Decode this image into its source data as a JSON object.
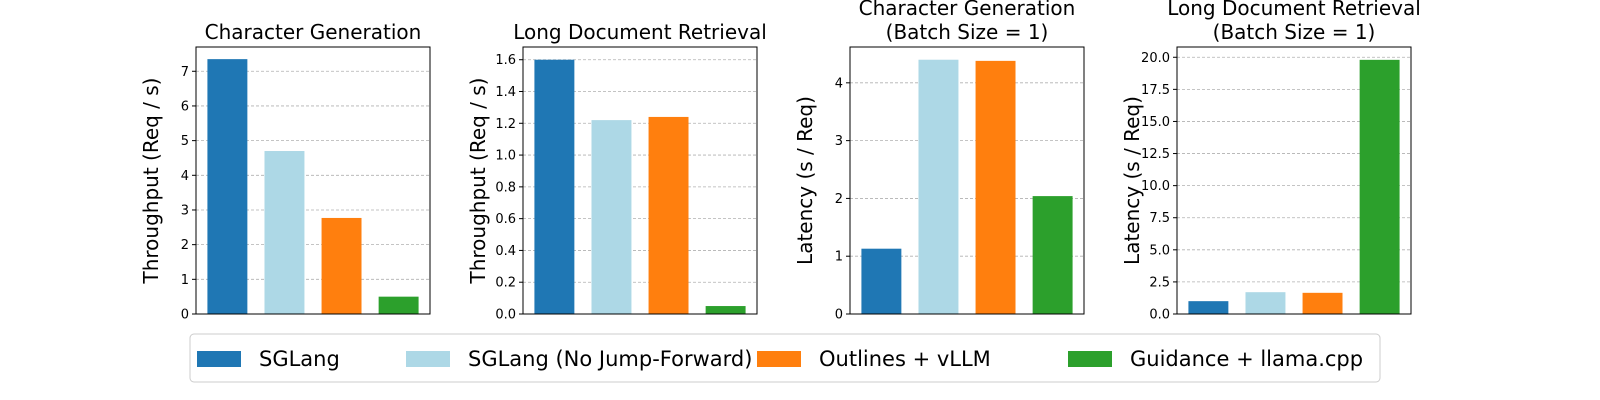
{
  "chart_data": [
    {
      "type": "bar",
      "title": [
        "Character Generation"
      ],
      "ylabel": "Throughput (Req / s)",
      "ylim": [
        0,
        7.7
      ],
      "yticks": [
        0,
        1,
        2,
        3,
        4,
        5,
        6,
        7
      ],
      "ytick_labels": [
        "0",
        "1",
        "2",
        "3",
        "4",
        "5",
        "6",
        "7"
      ],
      "grid": true,
      "series": [
        {
          "name": "SGLang",
          "values": [
            7.35
          ]
        },
        {
          "name": "SGLang (No Jump-Forward)",
          "values": [
            4.7
          ]
        },
        {
          "name": "Outlines + vLLM",
          "values": [
            2.77
          ]
        },
        {
          "name": "Guidance + llama.cpp",
          "values": [
            0.5
          ]
        }
      ]
    },
    {
      "type": "bar",
      "title": [
        "Long Document Retrieval"
      ],
      "ylabel": "Throughput (Req / s)",
      "ylim": [
        0,
        1.68
      ],
      "yticks": [
        0,
        0.2,
        0.4,
        0.6,
        0.8,
        1.0,
        1.2,
        1.4,
        1.6
      ],
      "ytick_labels": [
        "0.0",
        "0.2",
        "0.4",
        "0.6",
        "0.8",
        "1.0",
        "1.2",
        "1.4",
        "1.6"
      ],
      "grid": true,
      "series": [
        {
          "name": "SGLang",
          "values": [
            1.6
          ]
        },
        {
          "name": "SGLang (No Jump-Forward)",
          "values": [
            1.22
          ]
        },
        {
          "name": "Outlines + vLLM",
          "values": [
            1.24
          ]
        },
        {
          "name": "Guidance + llama.cpp",
          "values": [
            0.05
          ]
        }
      ]
    },
    {
      "type": "bar",
      "title": [
        "Character Generation",
        "(Batch Size = 1)"
      ],
      "ylabel": "Latency (s / Req)",
      "ylim": [
        0,
        4.62
      ],
      "yticks": [
        0,
        1,
        2,
        3,
        4
      ],
      "ytick_labels": [
        "0",
        "1",
        "2",
        "3",
        "4"
      ],
      "grid": true,
      "series": [
        {
          "name": "SGLang",
          "values": [
            1.13
          ]
        },
        {
          "name": "SGLang (No Jump-Forward)",
          "values": [
            4.4
          ]
        },
        {
          "name": "Outlines + vLLM",
          "values": [
            4.38
          ]
        },
        {
          "name": "Guidance + llama.cpp",
          "values": [
            2.04
          ]
        }
      ]
    },
    {
      "type": "bar",
      "title": [
        "Long Document Retrieval",
        "(Batch Size = 1)"
      ],
      "ylabel": "Latency (s / Req)",
      "ylim": [
        0,
        20.8
      ],
      "yticks": [
        0,
        2.5,
        5,
        7.5,
        10,
        12.5,
        15,
        17.5,
        20
      ],
      "ytick_labels": [
        "0.0",
        "2.5",
        "5.0",
        "7.5",
        "10.0",
        "12.5",
        "15.0",
        "17.5",
        "20.0"
      ],
      "grid": true,
      "series": [
        {
          "name": "SGLang",
          "values": [
            1.0
          ]
        },
        {
          "name": "SGLang (No Jump-Forward)",
          "values": [
            1.7
          ]
        },
        {
          "name": "Outlines + vLLM",
          "values": [
            1.65
          ]
        },
        {
          "name": "Guidance + llama.cpp",
          "values": [
            19.8
          ]
        }
      ]
    }
  ],
  "legend": {
    "placement": "bottom-center",
    "entries": [
      {
        "label": "SGLang",
        "color": "#1f77b4"
      },
      {
        "label": "SGLang (No Jump-Forward)",
        "color": "#add8e6"
      },
      {
        "label": "Outlines + vLLM",
        "color": "#ff7f0e"
      },
      {
        "label": "Guidance + llama.cpp",
        "color": "#2ca02c"
      }
    ]
  }
}
